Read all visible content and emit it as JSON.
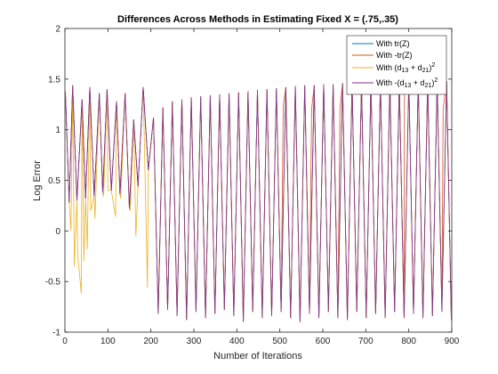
{
  "chart_data": {
    "type": "line",
    "title": "Differences Across Methods in Estimating Fixed X = (.75,.35)",
    "xlabel": "Number of Iterations",
    "ylabel": "Log Error",
    "xlim": [
      0,
      900
    ],
    "ylim": [
      -1,
      2
    ],
    "xticks": [
      "0",
      "100",
      "200",
      "300",
      "400",
      "500",
      "600",
      "700",
      "800",
      "900"
    ],
    "yticks": [
      "-1",
      "-0.5",
      "0",
      "0.5",
      "1",
      "1.5",
      "2"
    ],
    "xtick_values": [
      0,
      100,
      200,
      300,
      400,
      500,
      600,
      700,
      800,
      900
    ],
    "ytick_values": [
      -1,
      -0.5,
      0,
      0.5,
      1,
      1.5,
      2
    ],
    "grid": false,
    "legend_position": "top-right",
    "series": [
      {
        "name": "With tr(Z)",
        "color": "#0072BD"
      },
      {
        "name": "With -tr(Z)",
        "color": "#D95319"
      },
      {
        "name": "With (d13 + d21)^2",
        "color": "#EDB120"
      },
      {
        "name": "With -(d13 + d21)^2",
        "color": "#7E2F8E"
      }
    ],
    "pattern": {
      "period_iterations": 22,
      "late_peaks": [
        [
          206,
          1.12
        ],
        [
          228,
          1.22
        ],
        [
          250,
          1.28
        ],
        [
          272,
          1.3
        ],
        [
          294,
          1.32
        ],
        [
          316,
          1.33
        ],
        [
          338,
          1.34
        ],
        [
          360,
          1.35
        ],
        [
          382,
          1.36
        ],
        [
          404,
          1.37
        ],
        [
          426,
          1.38
        ],
        [
          448,
          1.39
        ],
        [
          470,
          1.4
        ],
        [
          492,
          1.41
        ],
        [
          514,
          1.42
        ],
        [
          536,
          1.43
        ],
        [
          558,
          1.44
        ],
        [
          580,
          1.44
        ],
        [
          602,
          1.45
        ],
        [
          624,
          1.45
        ],
        [
          646,
          1.46
        ],
        [
          668,
          1.46
        ],
        [
          690,
          1.46
        ],
        [
          712,
          1.47
        ],
        [
          734,
          1.47
        ],
        [
          756,
          1.47
        ],
        [
          778,
          1.47
        ],
        [
          800,
          1.48
        ],
        [
          822,
          1.48
        ],
        [
          844,
          1.48
        ],
        [
          866,
          1.48
        ],
        [
          888,
          1.48
        ]
      ],
      "late_troughs": [
        [
          217,
          -0.82
        ],
        [
          239,
          -0.78
        ],
        [
          261,
          -0.84
        ],
        [
          283,
          -0.88
        ],
        [
          305,
          -0.8
        ],
        [
          327,
          -0.86
        ],
        [
          349,
          -0.82
        ],
        [
          371,
          -0.78
        ],
        [
          393,
          -0.84
        ],
        [
          415,
          -0.9
        ],
        [
          437,
          -0.8
        ],
        [
          459,
          -0.86
        ],
        [
          481,
          -0.84
        ],
        [
          503,
          -0.8
        ],
        [
          525,
          -0.86
        ],
        [
          547,
          -0.9
        ],
        [
          569,
          -0.82
        ],
        [
          591,
          -0.86
        ],
        [
          613,
          -0.8
        ],
        [
          635,
          -0.86
        ],
        [
          657,
          -0.88
        ],
        [
          679,
          -0.8
        ],
        [
          701,
          -0.86
        ],
        [
          723,
          -0.82
        ],
        [
          745,
          -0.86
        ],
        [
          767,
          -0.8
        ],
        [
          789,
          -0.86
        ],
        [
          811,
          -0.82
        ],
        [
          833,
          -0.86
        ],
        [
          855,
          -0.84
        ],
        [
          877,
          -0.8
        ],
        [
          899,
          -0.88
        ]
      ],
      "early_peaks": [
        [
          1,
          1.38
        ],
        [
          18,
          1.44
        ],
        [
          40,
          1.3
        ],
        [
          58,
          1.42
        ],
        [
          80,
          1.36
        ],
        [
          98,
          1.4
        ],
        [
          120,
          1.28
        ],
        [
          140,
          1.36
        ],
        [
          160,
          1.1
        ],
        [
          182,
          1.42
        ]
      ],
      "early_troughs": [
        [
          10,
          0.28
        ],
        [
          28,
          0.3
        ],
        [
          48,
          0.32
        ],
        [
          68,
          0.34
        ],
        [
          88,
          0.38
        ],
        [
          108,
          0.4
        ],
        [
          128,
          0.36
        ],
        [
          150,
          0.22
        ],
        [
          170,
          0.44
        ],
        [
          194,
          0.6
        ]
      ],
      "yellow_dips": [
        [
          14,
          0.0
        ],
        [
          22,
          -0.35
        ],
        [
          30,
          -0.25
        ],
        [
          36,
          -0.52
        ],
        [
          38,
          -0.62
        ],
        [
          44,
          -0.3
        ],
        [
          52,
          -0.18
        ],
        [
          60,
          0.2
        ],
        [
          70,
          0.12
        ],
        [
          90,
          0.34
        ],
        [
          100,
          0.4
        ],
        [
          118,
          0.14
        ],
        [
          130,
          0.32
        ],
        [
          152,
          0.2
        ],
        [
          165,
          -0.05
        ],
        [
          192,
          -0.56
        ]
      ],
      "orange_offsets": [
        [
          574,
          1.2
        ],
        [
          880,
          1.2
        ],
        [
          790,
          1.34
        ],
        [
          640,
          1.22
        ],
        [
          508,
          1.24
        ]
      ]
    }
  },
  "legend": {
    "entries": [
      {
        "label": "With tr(Z)"
      },
      {
        "label": "With -tr(Z)"
      },
      {
        "label": "With (d",
        "sub1": "13",
        "mid": " + d",
        "sub2": "21",
        "tail": ")",
        "sup": "2"
      },
      {
        "label": "With -(d",
        "sub1": "13",
        "mid": " + d",
        "sub2": "21",
        "tail": ")",
        "sup": "2"
      }
    ]
  }
}
